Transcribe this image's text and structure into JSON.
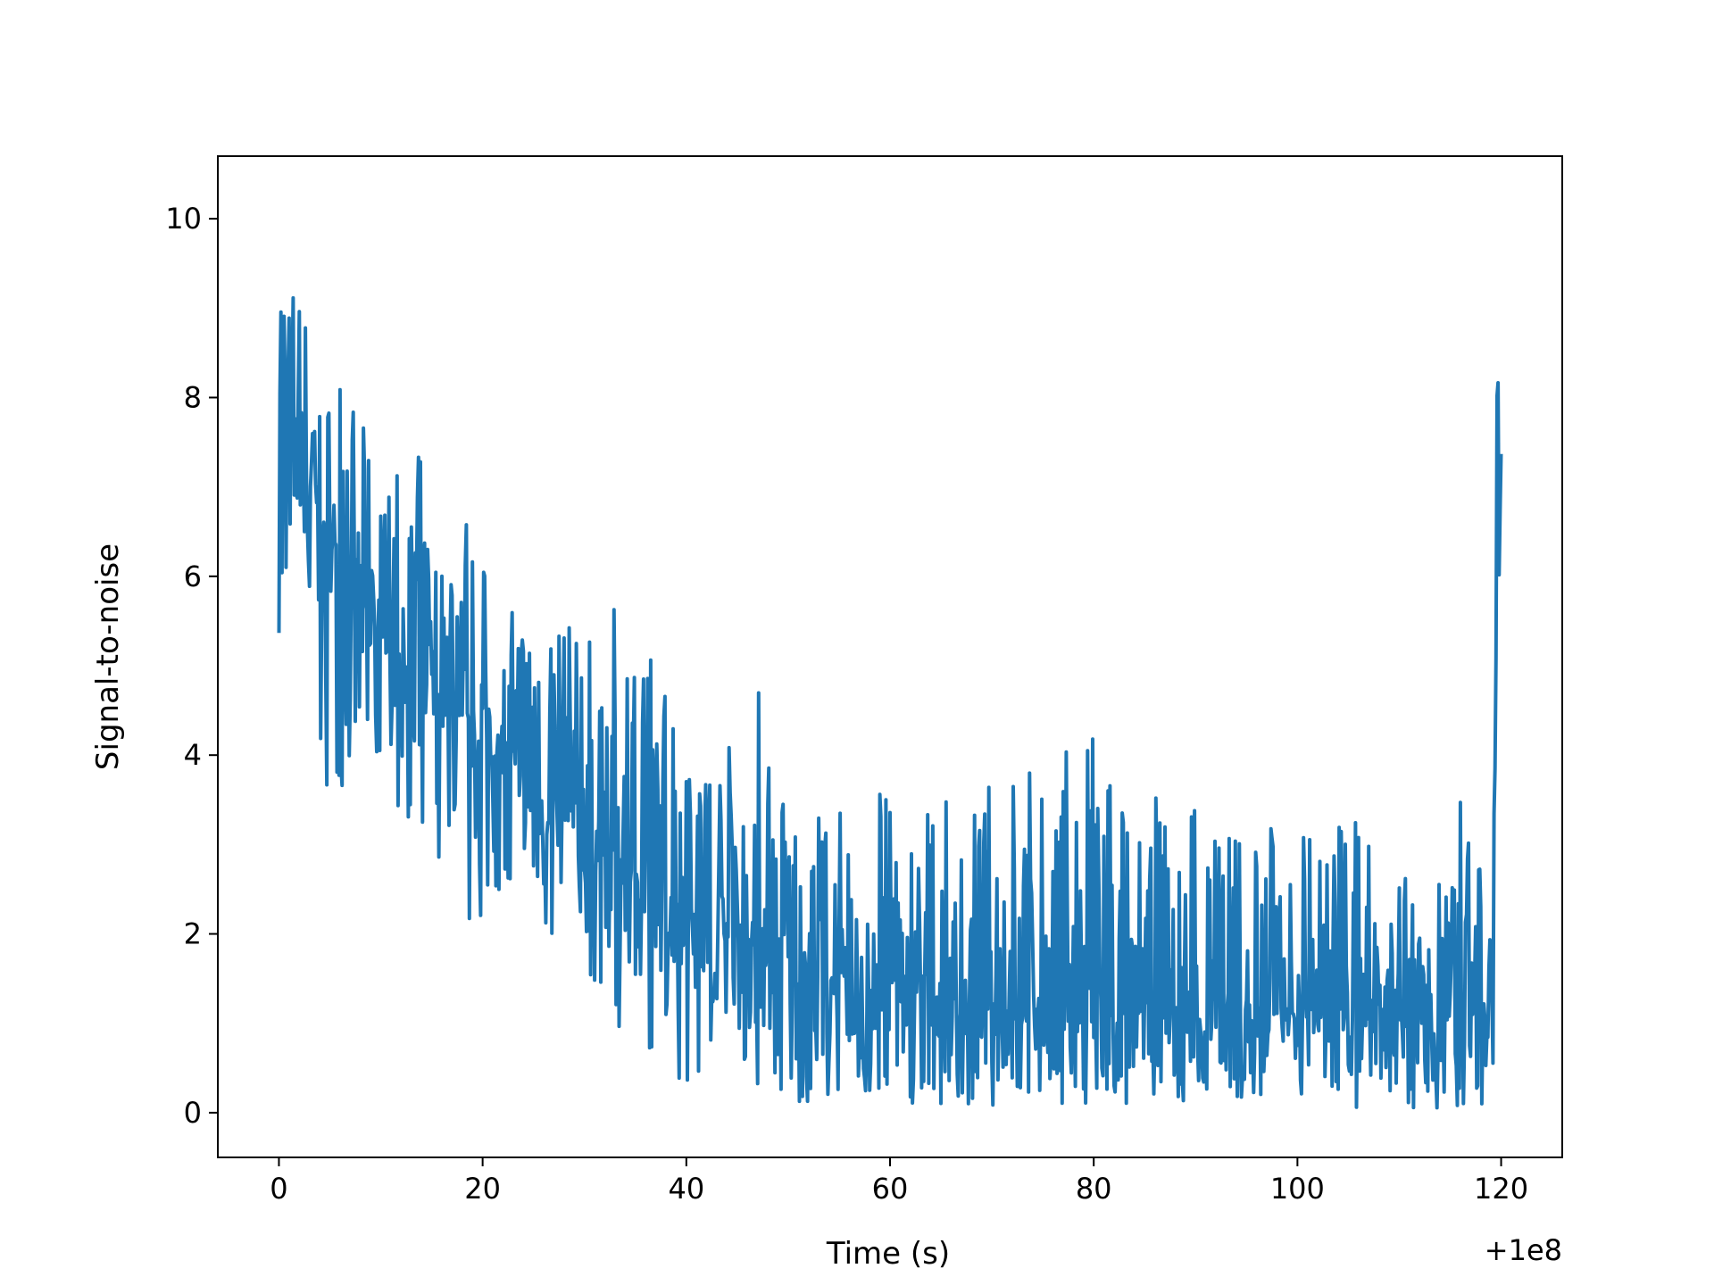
{
  "chart_data": {
    "type": "line",
    "title": "",
    "xlabel": "Time (s)",
    "ylabel": "Signal-to-noise",
    "x_offset_label": "+1e8",
    "xlim": [
      -6,
      126
    ],
    "ylim": [
      -0.5,
      10.7
    ],
    "xticks": [
      0,
      20,
      40,
      60,
      80,
      100,
      120
    ],
    "xtick_labels": [
      "0",
      "20",
      "40",
      "60",
      "80",
      "100",
      "120"
    ],
    "yticks": [
      0,
      2,
      4,
      6,
      8,
      10
    ],
    "ytick_labels": [
      "0",
      "2",
      "4",
      "6",
      "8",
      "10"
    ],
    "grid": false,
    "legend": false,
    "series": [
      {
        "color": "#1f77b4",
        "x": [
          0,
          1,
          2,
          3,
          4,
          5,
          6,
          7,
          8,
          9,
          10,
          12,
          14,
          16,
          18,
          20,
          22,
          24,
          26,
          28,
          30,
          32,
          34,
          36,
          38,
          40,
          42,
          44,
          46,
          48,
          50,
          52,
          54,
          56,
          58,
          60,
          64,
          68,
          72,
          76,
          80,
          84,
          88,
          92,
          96,
          100,
          104,
          108,
          112,
          116,
          119,
          119.5,
          120
        ],
        "y_mean": [
          8.6,
          7.8,
          7.3,
          6.9,
          6.6,
          6.35,
          6.1,
          5.9,
          5.7,
          5.5,
          5.35,
          5.05,
          4.8,
          4.6,
          4.4,
          4.15,
          3.95,
          3.75,
          3.5,
          3.3,
          3.1,
          2.9,
          2.75,
          2.6,
          2.45,
          2.3,
          2.15,
          2.0,
          1.9,
          1.8,
          1.65,
          1.55,
          1.5,
          1.45,
          1.4,
          1.35,
          1.3,
          1.25,
          1.2,
          1.2,
          1.15,
          1.15,
          1.15,
          1.15,
          1.15,
          1.15,
          1.15,
          1.15,
          1.2,
          1.2,
          1.2,
          1.2,
          7.8
        ],
        "y_min": [
          5.0,
          5.0,
          4.8,
          4.6,
          3.5,
          3.3,
          3.5,
          3.8,
          3.5,
          2.9,
          3.6,
          3.2,
          3.0,
          2.6,
          2.3,
          1.5,
          2.5,
          2.1,
          1.8,
          1.6,
          1.2,
          1.0,
          0.9,
          0.7,
          0.5,
          0.2,
          0.3,
          0.2,
          0.3,
          0.2,
          0.1,
          0.1,
          0.1,
          0.05,
          0.1,
          0.05,
          0.05,
          0.05,
          0.05,
          0.05,
          0.05,
          0.05,
          0.05,
          0.05,
          0.05,
          0.05,
          0.05,
          0.05,
          0.05,
          0.05,
          0.1,
          0.2,
          7.2
        ],
        "y_max": [
          10.2,
          9.4,
          9.4,
          8.8,
          8.1,
          8.1,
          8.4,
          8.1,
          7.8,
          7.4,
          6.9,
          7.3,
          7.4,
          6.3,
          7.2,
          6.2,
          5.6,
          5.8,
          6.5,
          5.5,
          5.5,
          5.5,
          5.8,
          5.5,
          5.0,
          5.3,
          4.3,
          4.1,
          5.2,
          4.7,
          3.8,
          3.7,
          3.6,
          3.3,
          4.3,
          3.4,
          3.5,
          3.5,
          4.0,
          4.0,
          4.3,
          3.5,
          3.7,
          3.4,
          3.3,
          3.2,
          3.4,
          3.3,
          3.3,
          3.5,
          2.5,
          8.9,
          8.3
        ]
      }
    ]
  }
}
